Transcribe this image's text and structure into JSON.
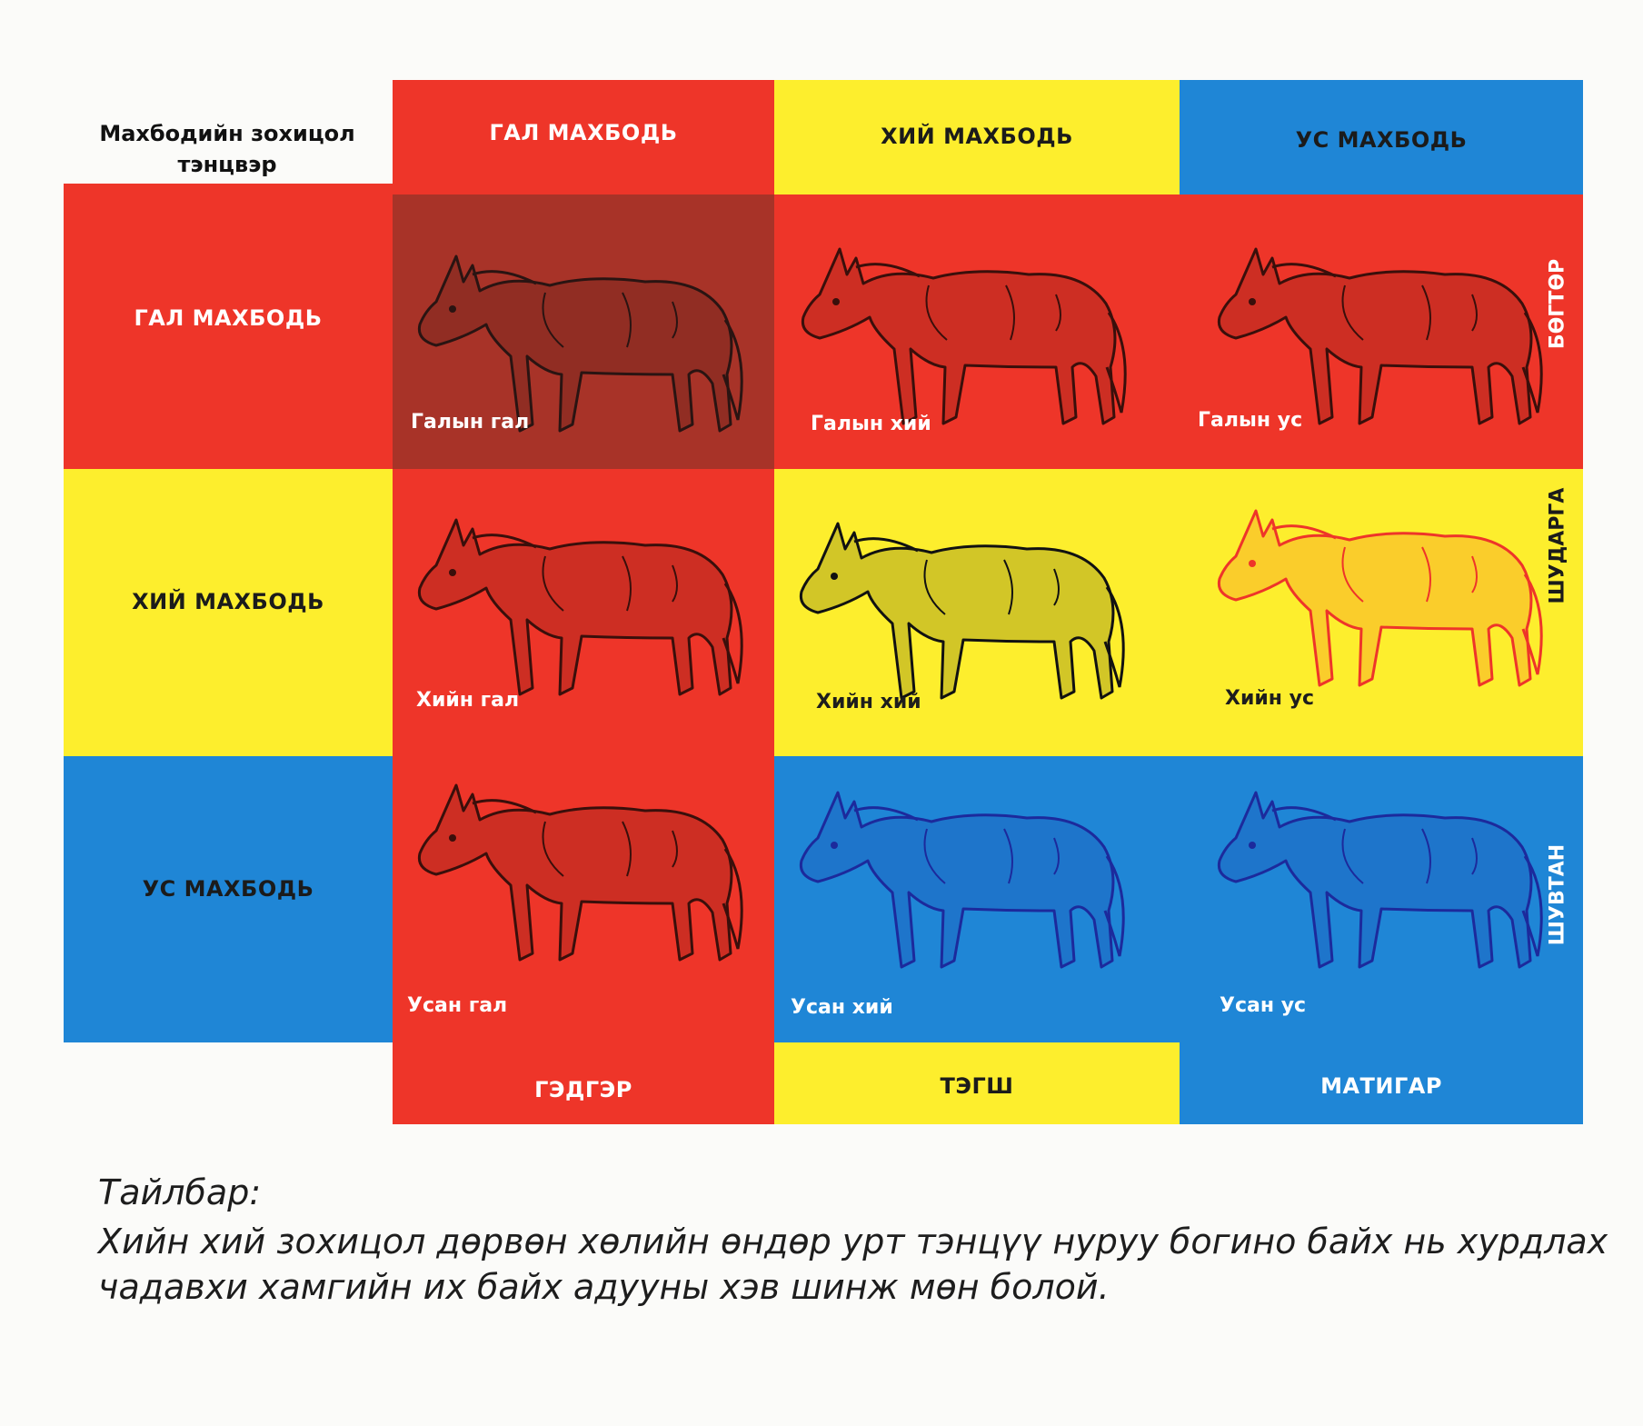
{
  "colors": {
    "fire": "#ee3529",
    "fire_dark": "#a83328",
    "air": "#fdee2d",
    "water": "#1f86d6"
  },
  "matrix_title": "Махбодийн зохицол тэнцвэр",
  "columns": [
    "ГАЛ МАХБОДЬ",
    "ХИЙ МАХБОДЬ",
    "УС МАХБОДЬ"
  ],
  "rows": [
    "ГАЛ МАХБОДЬ",
    "ХИЙ МАХБОДЬ",
    "УС МАХБОДЬ"
  ],
  "bottom_labels": [
    "ГЭДГЭР",
    "ТЭГШ",
    "МАТИГАР"
  ],
  "right_labels": [
    "БӨГТӨР",
    "ШУДАРГА",
    "ШУВТАН"
  ],
  "cells": [
    [
      "Галын гал",
      "Галын хий",
      "Галын ус"
    ],
    [
      "Хийн гал",
      "Хийн хий",
      "Хийн ус"
    ],
    [
      "Усан гал",
      "Усан хий",
      "Усан ус"
    ]
  ],
  "caption": {
    "heading": "Тайлбар:",
    "line1": "Хийн хий зохицол дөрвөн хөлийн өндөр урт тэнцүү нуруу богино байх нь хурдлах",
    "line2": "чадавхи хамгийн их байх адууны хэв шинж мөн болой."
  }
}
